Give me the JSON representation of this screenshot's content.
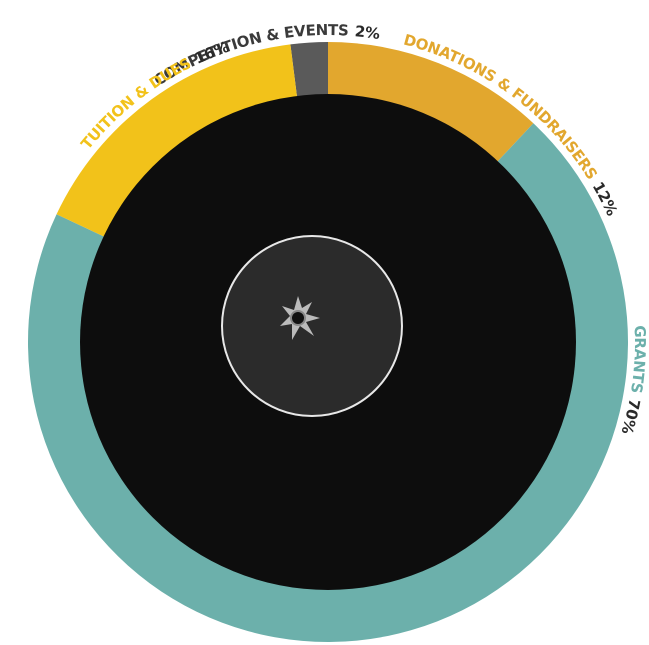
{
  "chart_data": {
    "type": "donut",
    "categories": [
      "COMPETITION & EVENTS",
      "DONATIONS & FUNDRAISERS",
      "GRANTS",
      "TUITION & DUES"
    ],
    "values": [
      2,
      12,
      70,
      16
    ],
    "value_labels": [
      "2%",
      "12%",
      "70%",
      "16%"
    ],
    "colors": [
      "#5a5a5a",
      "#e2a72e",
      "#6cb0ab",
      "#f2c21a"
    ]
  }
}
